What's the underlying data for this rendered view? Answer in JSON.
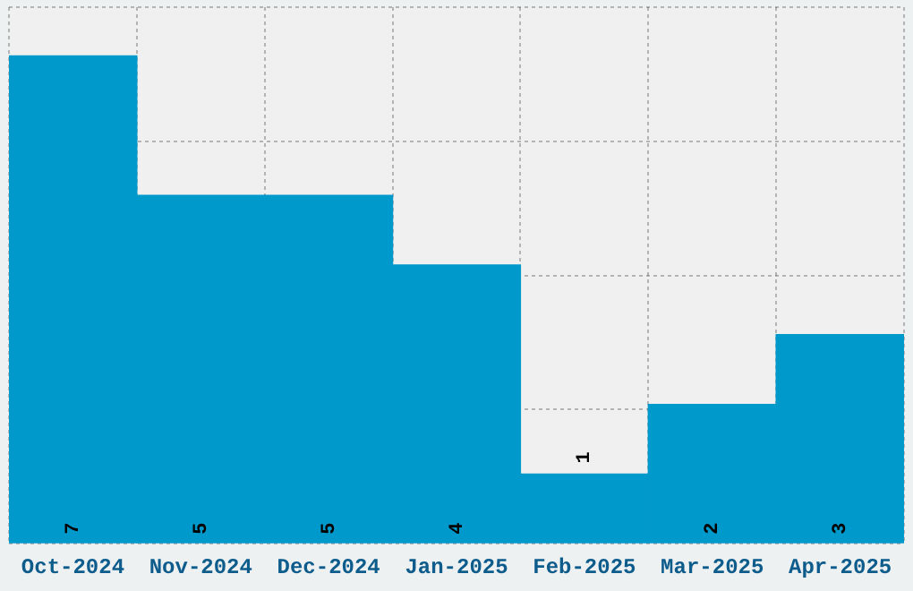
{
  "chart_data": {
    "type": "bar",
    "categories": [
      "Oct-2024",
      "Nov-2024",
      "Dec-2024",
      "Jan-2025",
      "Feb-2025",
      "Mar-2025",
      "Apr-2025"
    ],
    "values": [
      7,
      5,
      5,
      4,
      1,
      2,
      3
    ],
    "color": "#0099cc",
    "ylim": [
      0,
      7.7
    ],
    "yticks": [
      {
        "value": 0,
        "label": null
      },
      {
        "value": 1.925,
        "label": null
      },
      {
        "value": 3.85,
        "label": null
      },
      {
        "value": 5.775,
        "label": null
      },
      {
        "value": 7.7,
        "label": null
      }
    ],
    "tick_labels": "x",
    "grid": true,
    "data_labels": true,
    "legend": false
  }
}
